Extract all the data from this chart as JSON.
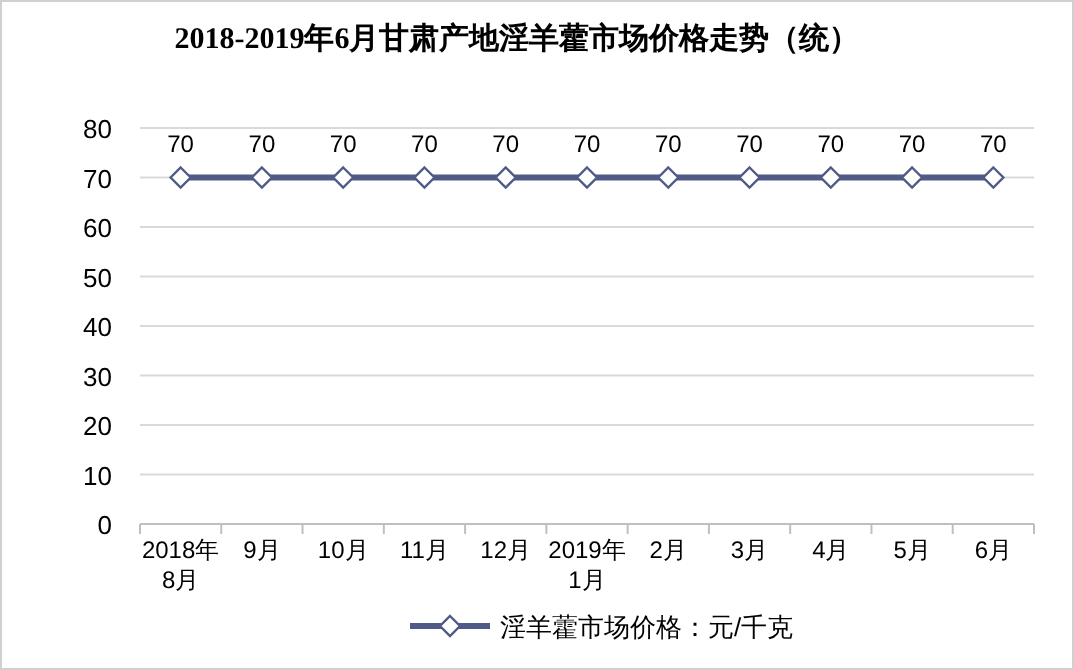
{
  "chart_data": {
    "type": "line",
    "title": "2018-2019年6月甘肃产地淫羊藿市场价格走势（统）",
    "categories": [
      "2018年\n8月",
      "9月",
      "10月",
      "11月",
      "12月",
      "2019年\n1月",
      "2月",
      "3月",
      "4月",
      "5月",
      "6月"
    ],
    "series": [
      {
        "name": "淫羊藿市场价格：元/千克",
        "color": "#4f5a87",
        "values": [
          70,
          70,
          70,
          70,
          70,
          70,
          70,
          70,
          70,
          70,
          70
        ]
      }
    ],
    "ylim": [
      0,
      80
    ],
    "yticks": [
      0,
      10,
      20,
      30,
      40,
      50,
      60,
      70,
      80
    ],
    "grid": "y",
    "legend": "bottom",
    "marker": "diamond",
    "line_style": "solid",
    "data_labels": true
  }
}
